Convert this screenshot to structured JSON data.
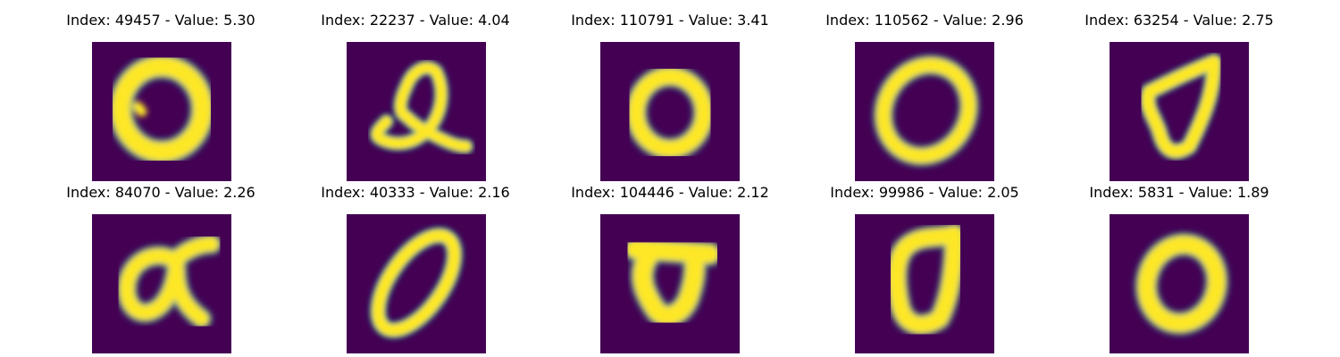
{
  "colors": {
    "background": "#440154",
    "low": "#3b528b",
    "mid": "#21918c",
    "high": "#fde725"
  },
  "panels": [
    {
      "title": "Index: 49457 - Value: 5.30"
    },
    {
      "title": "Index: 22237 - Value: 4.04"
    },
    {
      "title": "Index: 110791 - Value: 3.41"
    },
    {
      "title": "Index: 110562 - Value: 2.96"
    },
    {
      "title": "Index: 63254 - Value: 2.75"
    },
    {
      "title": "Index: 84070 - Value: 2.26"
    },
    {
      "title": "Index: 40333 - Value: 2.16"
    },
    {
      "title": "Index: 104446 - Value: 2.12"
    },
    {
      "title": "Index: 99986 - Value: 2.05"
    },
    {
      "title": "Index: 5831 - Value: 1.89"
    }
  ]
}
